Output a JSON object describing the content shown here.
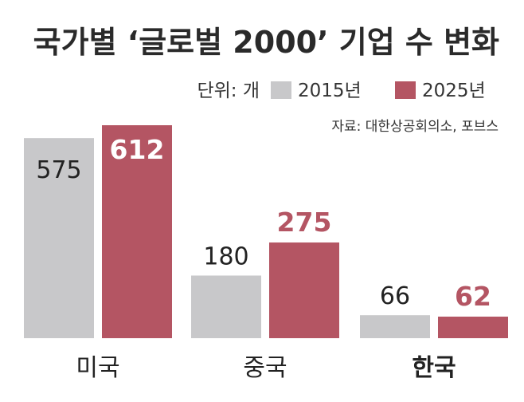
{
  "chart_data": {
    "type": "bar",
    "title": "국가별 ‘글로벌 2000’ 기업 수 변화",
    "unit_label": "단위: 개",
    "source": "자료: 대한상공회의소, 포브스",
    "categories": [
      "미국",
      "중국",
      "한국"
    ],
    "highlight_category": "한국",
    "series": [
      {
        "name": "2015년",
        "values": [
          575,
          180,
          66
        ],
        "color": "#c8c8ca"
      },
      {
        "name": "2025년",
        "values": [
          612,
          275,
          62
        ],
        "color": "#b45563"
      }
    ],
    "ylim": [
      0,
      612
    ],
    "grid": false,
    "legend_position": "top-right"
  }
}
